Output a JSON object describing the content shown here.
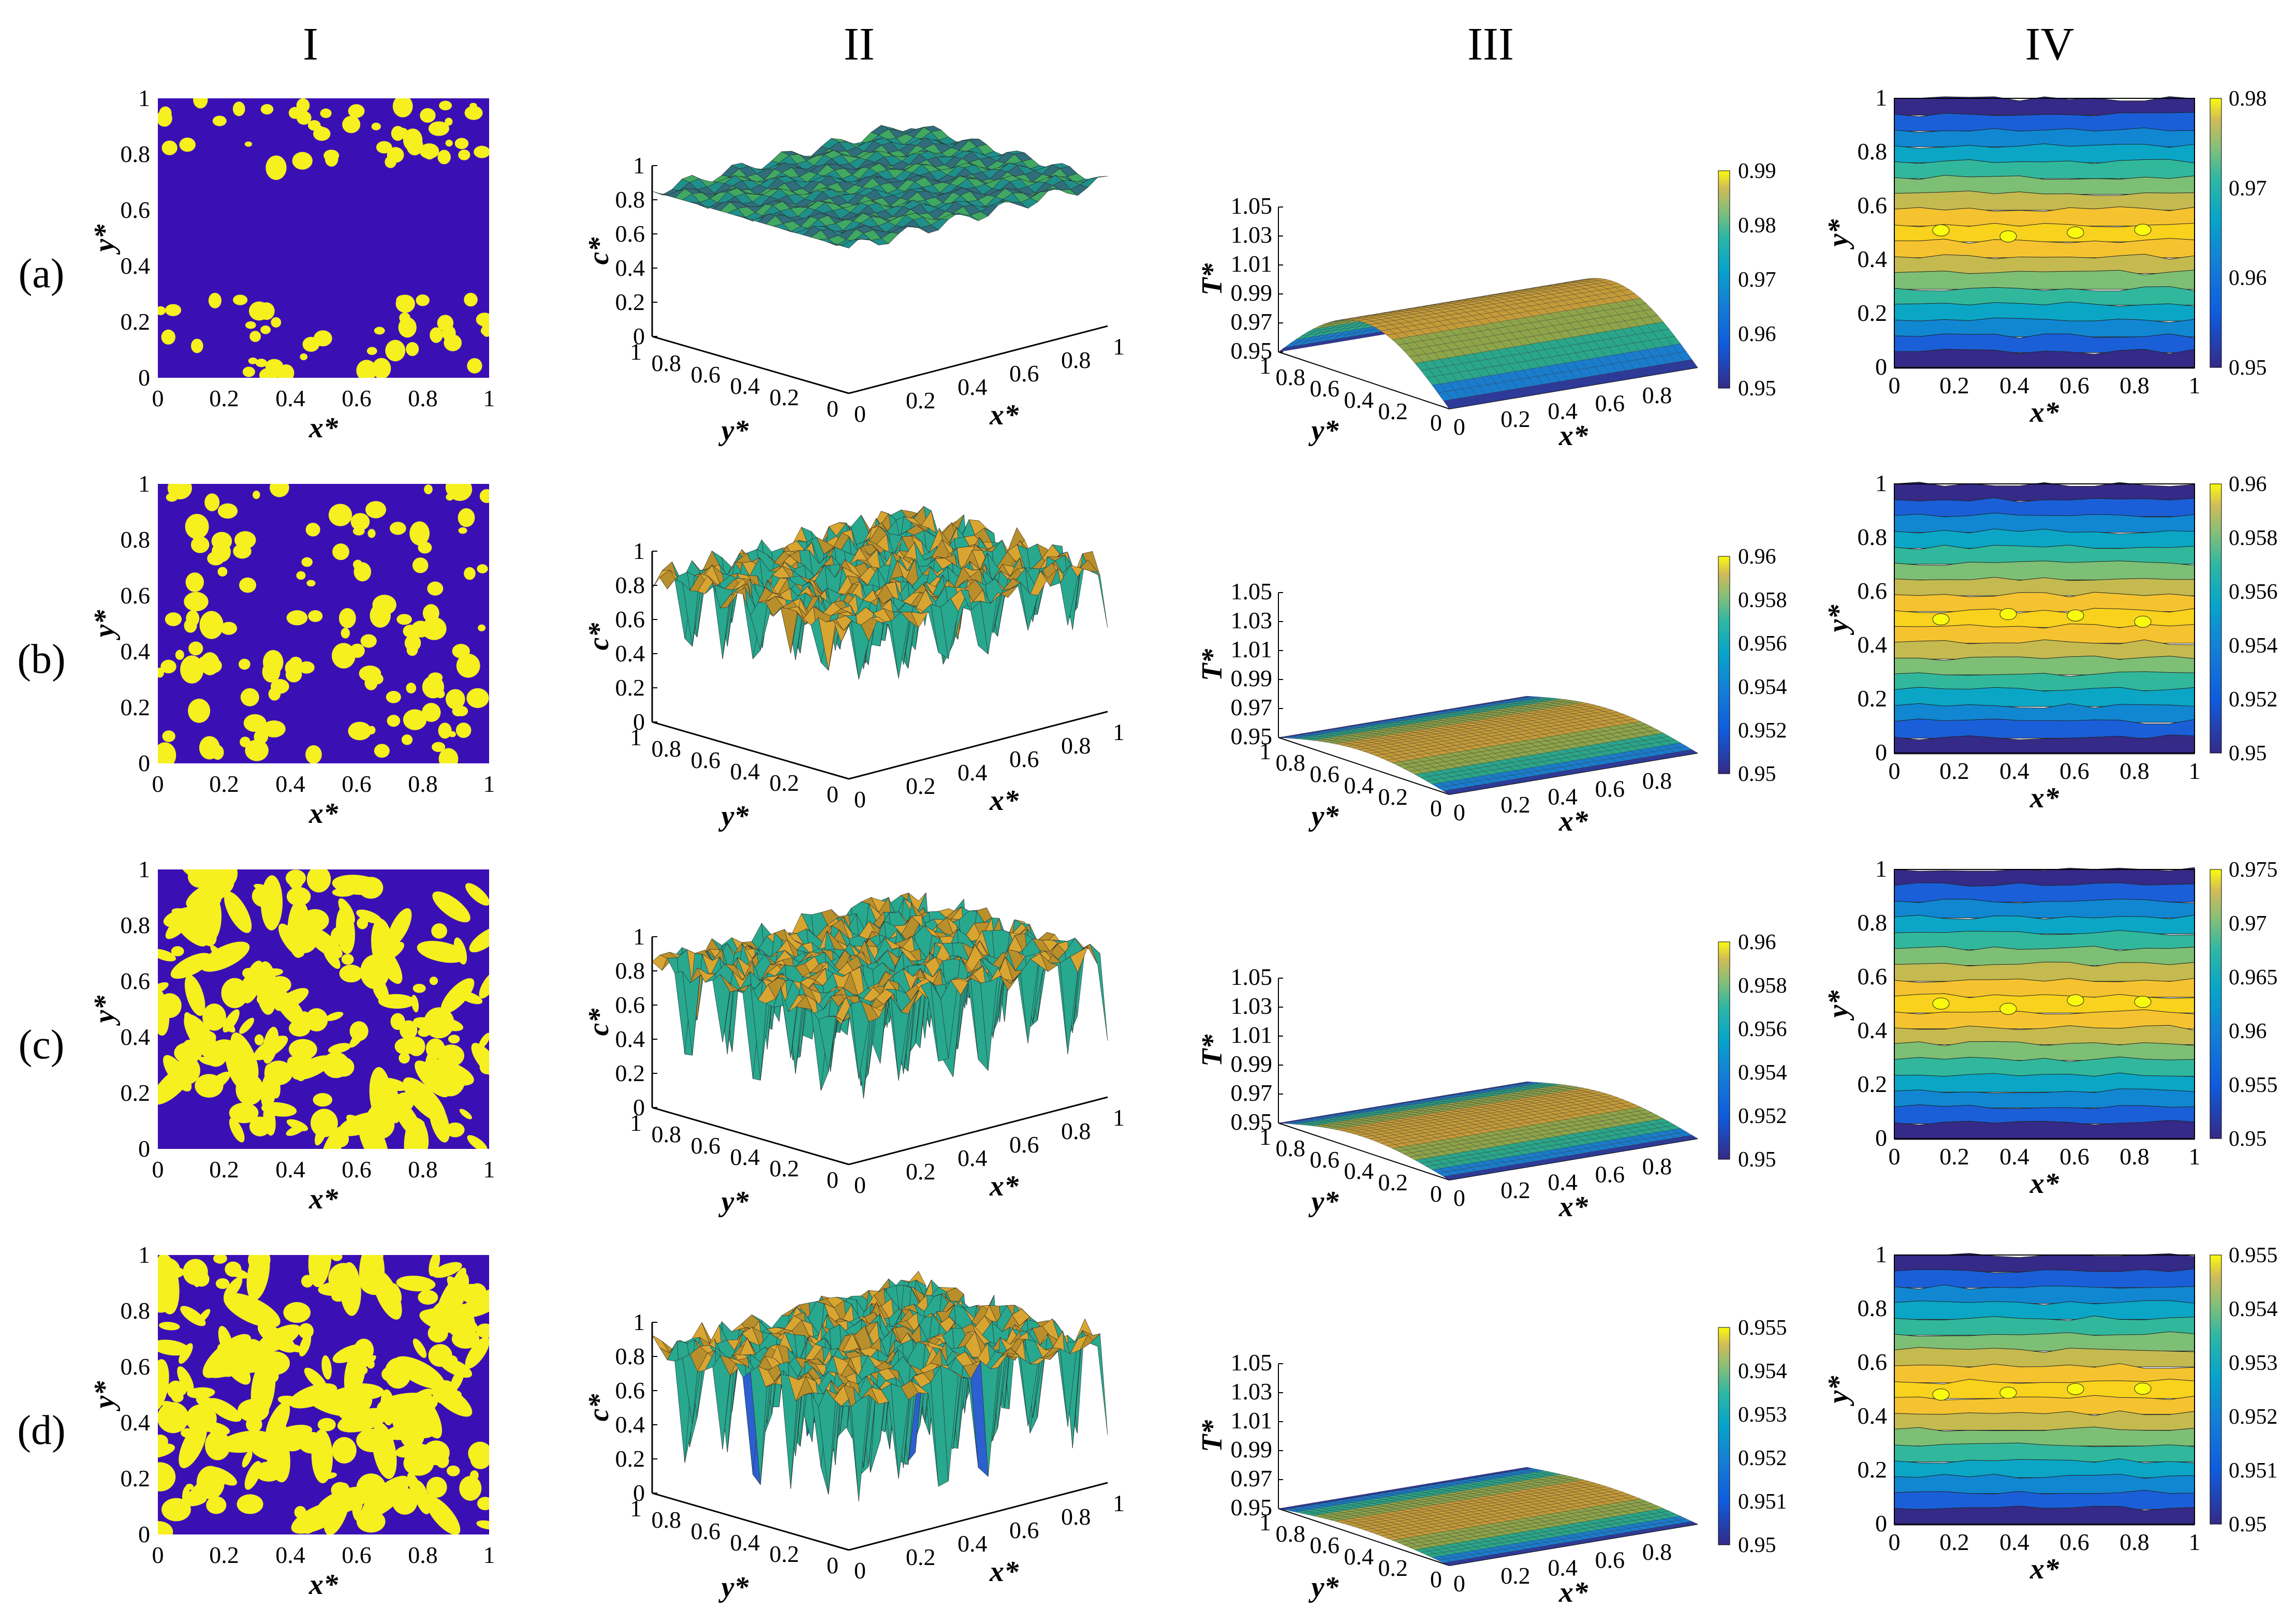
{
  "figure": {
    "column_headers": [
      "I",
      "II",
      "III",
      "IV"
    ],
    "row_labels": [
      "(a)",
      "(b)",
      "(c)",
      "(d)"
    ]
  },
  "colors": {
    "blue": "#3a10b4",
    "yellow": "#f5f01e",
    "parula_low": "#352a87",
    "parula_mid": "#21b1a0",
    "parula_high": "#f9fb0e"
  },
  "chart_data": [
    {
      "panel": "I",
      "type": "heatmap",
      "description_key": "phase-morphology",
      "xlabel": "x*",
      "ylabel": "y*",
      "xlim": [
        0,
        1
      ],
      "ylim": [
        0,
        1
      ],
      "xticks": [
        "0",
        "0.2",
        "0.4",
        "0.6",
        "0.8",
        "1"
      ],
      "yticks": [
        "0",
        "0.2",
        "0.4",
        "0.6",
        "0.8",
        "1"
      ],
      "rows": [
        {
          "row": "(a)",
          "yellow_fraction": 0.12
        },
        {
          "row": "(b)",
          "yellow_fraction": 0.25
        },
        {
          "row": "(c)",
          "yellow_fraction": 0.45
        },
        {
          "row": "(d)",
          "yellow_fraction": 0.52
        }
      ]
    },
    {
      "panel": "II",
      "type": "surface",
      "xlabel": "x*",
      "ylabel": "y*",
      "zlabel": "c*",
      "xticks": [
        "0",
        "0.2",
        "0.4",
        "0.6",
        "0.8",
        "1"
      ],
      "yticks": [
        "1",
        "0.8",
        "0.6",
        "0.4",
        "0.2",
        "0"
      ],
      "zticks": [
        "0",
        "0.2",
        "0.4",
        "0.6",
        "0.8",
        "1"
      ],
      "rows": [
        {
          "row": "(a)",
          "mean": 0.85,
          "min": 0.78,
          "max": 0.92
        },
        {
          "row": "(b)",
          "mean": 0.85,
          "min": 0.45,
          "max": 1.0
        },
        {
          "row": "(c)",
          "mean": 0.85,
          "min": 0.3,
          "max": 1.0
        },
        {
          "row": "(d)",
          "mean": 0.85,
          "min": 0.2,
          "max": 1.0
        }
      ]
    },
    {
      "panel": "III",
      "type": "surface",
      "xlabel": "x*",
      "ylabel": "y*",
      "zlabel": "T*",
      "xticks": [
        "0",
        "0.2",
        "0.4",
        "0.6",
        "0.8"
      ],
      "yticks": [
        "1",
        "0.8",
        "0.6",
        "0.4",
        "0.2",
        "0"
      ],
      "zticks": [
        "0.95",
        "0.97",
        "0.99",
        "1.01",
        "1.03",
        "1.05"
      ],
      "rows": [
        {
          "row": "(a)",
          "Tmax": 0.99,
          "colorbar": [
            "0.99",
            "0.98",
            "0.97",
            "0.96",
            "0.95"
          ]
        },
        {
          "row": "(b)",
          "Tmax": 0.96,
          "colorbar": [
            "0.96",
            "0.958",
            "0.956",
            "0.954",
            "0.952",
            "0.95"
          ]
        },
        {
          "row": "(c)",
          "Tmax": 0.96,
          "colorbar": [
            "0.96",
            "0.958",
            "0.956",
            "0.954",
            "0.952",
            "0.95"
          ]
        },
        {
          "row": "(d)",
          "Tmax": 0.955,
          "colorbar": [
            "0.955",
            "0.954",
            "0.953",
            "0.952",
            "0.951",
            "0.95"
          ]
        }
      ]
    },
    {
      "panel": "IV",
      "type": "heatmap",
      "description_key": "temperature-contour",
      "xlabel": "x*",
      "ylabel": "y*",
      "xticks": [
        "0",
        "0.2",
        "0.4",
        "0.6",
        "0.8",
        "1"
      ],
      "yticks": [
        "0",
        "0.2",
        "0.4",
        "0.6",
        "0.8",
        "1"
      ],
      "rows": [
        {
          "row": "(a)",
          "colorbar": [
            "0.98",
            "0.97",
            "0.96",
            "0.95"
          ]
        },
        {
          "row": "(b)",
          "colorbar": [
            "0.96",
            "0.958",
            "0.956",
            "0.954",
            "0.952",
            "0.95"
          ]
        },
        {
          "row": "(c)",
          "colorbar": [
            "0.975",
            "0.97",
            "0.965",
            "0.96",
            "0.955",
            "0.95"
          ]
        },
        {
          "row": "(d)",
          "colorbar": [
            "0.955",
            "0.954",
            "0.953",
            "0.952",
            "0.951",
            "0.95"
          ]
        }
      ]
    }
  ]
}
